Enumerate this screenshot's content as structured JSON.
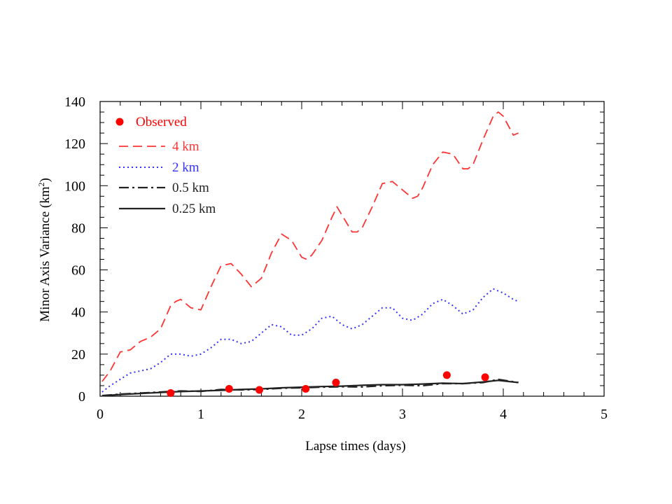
{
  "chart_data": {
    "type": "line",
    "title": "",
    "xlabel": "Lapse times (days)",
    "ylabel": "Minor Axis Variance (km",
    "ylabel_superscript": "2",
    "ylabel_suffix": ")",
    "xlim": [
      0,
      5
    ],
    "ylim": [
      0,
      140
    ],
    "x_ticks": [
      "0",
      "1",
      "2",
      "3",
      "4",
      "5"
    ],
    "y_ticks": [
      "0",
      "20",
      "40",
      "60",
      "80",
      "100",
      "120",
      "140"
    ],
    "grid": false,
    "legend_position": "top-left",
    "legend": [
      {
        "label": "Observed",
        "color": "#ff0000",
        "style": "marker"
      },
      {
        "label": "4 km",
        "color": "#ff3333",
        "style": "dashed"
      },
      {
        "label": "2 km",
        "color": "#3333ff",
        "style": "dotted"
      },
      {
        "label": "0.5 km",
        "color": "#222222",
        "style": "dashdot"
      },
      {
        "label": "0.25 km",
        "color": "#222222",
        "style": "solid"
      }
    ],
    "observed": {
      "x": [
        0.7,
        1.28,
        1.58,
        2.04,
        2.34,
        3.44,
        3.82
      ],
      "y": [
        1.5,
        3.5,
        3,
        3.5,
        6.5,
        10,
        9
      ]
    },
    "series": [
      {
        "x": [
          0.02,
          0.1,
          0.2,
          0.3,
          0.4,
          0.5,
          0.6,
          0.7,
          0.75,
          0.8,
          0.9,
          1.0,
          1.1,
          1.2,
          1.3,
          1.4,
          1.5,
          1.6,
          1.7,
          1.8,
          1.9,
          2.0,
          2.05,
          2.1,
          2.2,
          2.3,
          2.35,
          2.4,
          2.5,
          2.55,
          2.6,
          2.7,
          2.8,
          2.9,
          3.0,
          3.1,
          3.15,
          3.2,
          3.3,
          3.4,
          3.5,
          3.6,
          3.65,
          3.7,
          3.8,
          3.9,
          3.95,
          4.0,
          4.1,
          4.15
        ],
        "y": [
          7,
          12,
          21,
          22,
          26,
          28,
          32,
          43,
          45,
          46,
          42,
          41,
          52,
          62,
          63,
          58,
          52,
          56,
          68,
          77,
          74,
          66,
          65,
          67,
          74,
          85,
          90,
          86,
          78,
          78,
          80,
          90,
          101,
          102,
          98,
          94,
          95,
          99,
          110,
          116,
          115,
          108,
          108,
          110,
          122,
          133,
          135,
          133,
          124,
          125
        ]
      },
      {
        "x": [
          0.02,
          0.1,
          0.2,
          0.3,
          0.4,
          0.5,
          0.6,
          0.7,
          0.8,
          0.9,
          1.0,
          1.1,
          1.2,
          1.3,
          1.4,
          1.5,
          1.6,
          1.7,
          1.8,
          1.9,
          2.0,
          2.1,
          2.2,
          2.3,
          2.4,
          2.5,
          2.6,
          2.7,
          2.8,
          2.9,
          3.0,
          3.1,
          3.2,
          3.3,
          3.4,
          3.5,
          3.6,
          3.7,
          3.8,
          3.9,
          4.0,
          4.1,
          4.15
        ],
        "y": [
          2,
          5,
          8,
          11,
          12,
          13,
          16,
          20,
          20,
          19,
          20,
          23,
          27,
          27,
          25,
          26,
          30,
          34,
          33,
          29,
          29,
          32,
          37,
          38,
          34,
          32,
          34,
          38,
          42,
          42,
          37,
          36,
          39,
          44,
          46,
          43,
          39,
          41,
          47,
          51,
          49,
          46,
          45
        ]
      },
      {
        "x": [
          0.02,
          0.2,
          0.4,
          0.6,
          0.8,
          1.0,
          1.2,
          1.4,
          1.6,
          1.8,
          2.0,
          2.2,
          2.4,
          2.6,
          2.8,
          3.0,
          3.2,
          3.4,
          3.6,
          3.8,
          3.95,
          4.15
        ],
        "y": [
          0.3,
          1,
          1.5,
          2,
          2.5,
          2.3,
          3.2,
          3,
          3.2,
          3.8,
          4,
          4.3,
          4.5,
          4.4,
          5,
          5.2,
          5,
          6,
          6,
          6.5,
          8,
          6.5
        ]
      },
      {
        "x": [
          0.02,
          0.2,
          0.4,
          0.6,
          0.8,
          1.0,
          1.2,
          1.4,
          1.6,
          1.8,
          2.0,
          2.2,
          2.4,
          2.6,
          2.8,
          3.0,
          3.2,
          3.4,
          3.6,
          3.8,
          3.95,
          4.15
        ],
        "y": [
          0.2,
          0.8,
          1.3,
          1.8,
          2.2,
          2.5,
          2.8,
          3.2,
          3.5,
          4,
          4.3,
          4.6,
          4.8,
          5.2,
          5.5,
          5.5,
          5.8,
          6.2,
          6,
          6.8,
          7.5,
          6.5
        ]
      }
    ]
  }
}
